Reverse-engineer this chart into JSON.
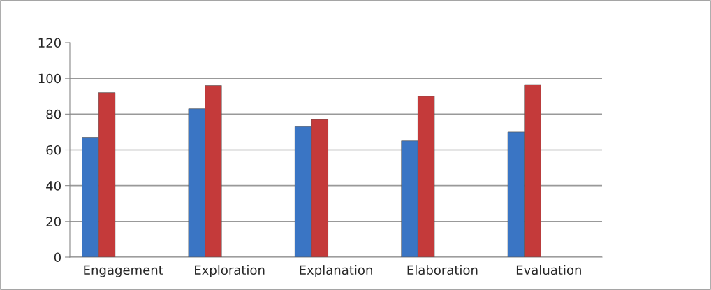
{
  "chart_data": {
    "type": "bar",
    "categories": [
      "Engagement",
      "Exploration",
      "Explanation",
      "Elaboration",
      "Evaluation"
    ],
    "series": [
      {
        "color": "#3a75c4",
        "values": [
          67,
          83,
          73,
          65,
          70
        ]
      },
      {
        "color": "#c43a3a",
        "values": [
          92,
          96,
          77,
          90,
          96.5
        ]
      }
    ],
    "ylim": [
      0,
      120
    ],
    "yticks": [
      0,
      20,
      40,
      60,
      80,
      100,
      120
    ],
    "grid": "y"
  }
}
